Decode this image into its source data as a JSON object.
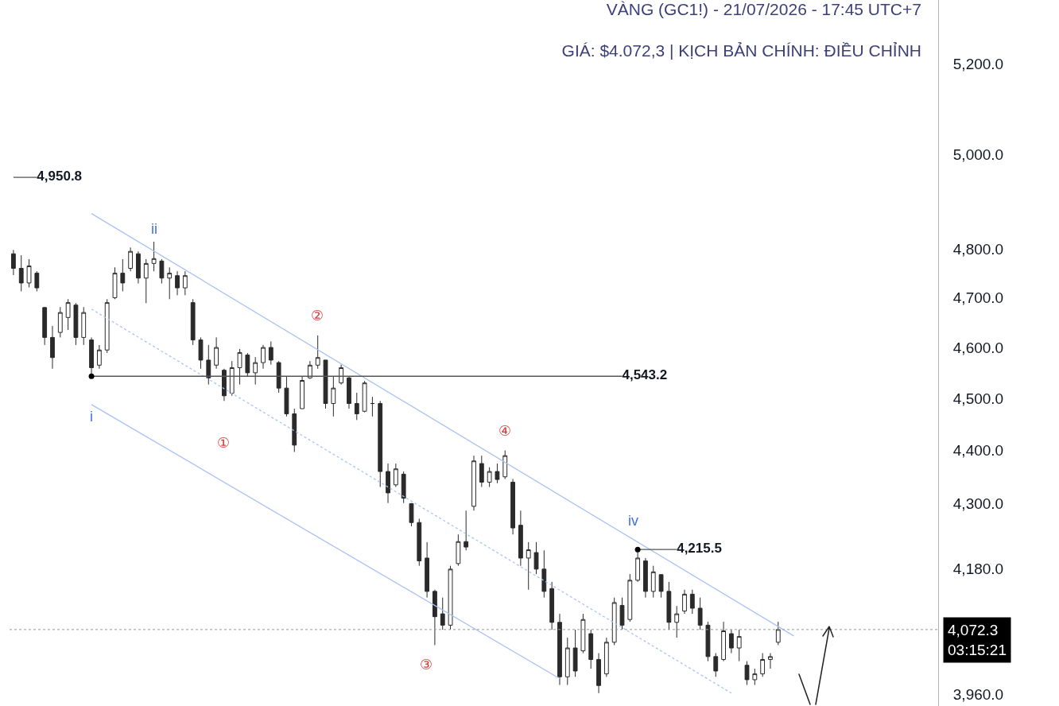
{
  "chart_data": {
    "type": "candlestick",
    "title": "VÀNG (GC1!) - 21/07/2026 - 17:45 UTC+7",
    "subtitle": "GIÁ: $4.072,3 | KỊCH BẢN CHÍNH: ĐIỀU CHỈNH",
    "color": "#2a2a2a",
    "categories": [
      null,
      null,
      null,
      null,
      null,
      null,
      null,
      null,
      null,
      null,
      null,
      null,
      null,
      null,
      null,
      null,
      null,
      null,
      null,
      null,
      null,
      null,
      null,
      null,
      null,
      null,
      null,
      null,
      null,
      null,
      null,
      null,
      null,
      null,
      null,
      null,
      null,
      null,
      null,
      null,
      null,
      null,
      null,
      null,
      null,
      null,
      null,
      null,
      null,
      null,
      null,
      null,
      null,
      null,
      null,
      null,
      null,
      null,
      null,
      null,
      null,
      null,
      null,
      null,
      null,
      null,
      null,
      null,
      null,
      null,
      null,
      null,
      null,
      null,
      null,
      null,
      null,
      null,
      null,
      null,
      null,
      null,
      null,
      null,
      null,
      null,
      null,
      null,
      null,
      null,
      null,
      null,
      null,
      null,
      null,
      null,
      null,
      null,
      null,
      null,
      null,
      null,
      null,
      null,
      null,
      null,
      null,
      null,
      null,
      null,
      null,
      null,
      null,
      null,
      null,
      null,
      null,
      null,
      null
    ],
    "ohlc": [
      [
        4790,
        4798,
        4746,
        4760
      ],
      [
        4760,
        4787,
        4713,
        4730
      ],
      [
        4730,
        4779,
        4721,
        4765
      ],
      [
        4750,
        4754,
        4713,
        4720
      ],
      [
        4680,
        4681,
        4605,
        4620
      ],
      [
        4620,
        4643,
        4558,
        4580
      ],
      [
        4630,
        4681,
        4620,
        4670
      ],
      [
        4660,
        4697,
        4635,
        4690
      ],
      [
        4685,
        4689,
        4605,
        4620
      ],
      [
        4620,
        4681,
        4605,
        4670
      ],
      [
        4615,
        4620,
        4545,
        4560
      ],
      [
        4565,
        4605,
        4558,
        4595
      ],
      [
        4595,
        4697,
        4589,
        4690
      ],
      [
        4700,
        4762,
        4697,
        4750
      ],
      [
        4750,
        4779,
        4713,
        4730
      ],
      [
        4760,
        4803,
        4754,
        4795
      ],
      [
        4790,
        4795,
        4729,
        4740
      ],
      [
        4740,
        4779,
        4689,
        4770
      ],
      [
        4770,
        4815,
        4754,
        4780
      ],
      [
        4775,
        4779,
        4729,
        4740
      ],
      [
        4740,
        4762,
        4697,
        4750
      ],
      [
        4745,
        4754,
        4705,
        4720
      ],
      [
        4720,
        4754,
        4705,
        4745
      ],
      [
        4690,
        4697,
        4605,
        4615
      ],
      [
        4615,
        4620,
        4558,
        4575
      ],
      [
        4575,
        4605,
        4527,
        4540
      ],
      [
        4565,
        4620,
        4558,
        4600
      ],
      [
        4555,
        4558,
        4495,
        4505
      ],
      [
        4510,
        4573,
        4505,
        4560
      ],
      [
        4560,
        4597,
        4527,
        4590
      ],
      [
        4585,
        4589,
        4542,
        4550
      ],
      [
        4550,
        4581,
        4527,
        4570
      ],
      [
        4570,
        4605,
        4558,
        4600
      ],
      [
        4600,
        4612,
        4566,
        4575
      ],
      [
        4570,
        4573,
        4511,
        4520
      ],
      [
        4520,
        4542,
        4465,
        4470
      ],
      [
        4470,
        4480,
        4397,
        4410
      ],
      [
        4480,
        4542,
        4480,
        4535
      ],
      [
        4540,
        4573,
        4538,
        4565
      ],
      [
        4565,
        4624,
        4558,
        4580
      ],
      [
        4575,
        4575,
        4480,
        4490
      ],
      [
        4490,
        4542,
        4465,
        4520
      ],
      [
        4530,
        4566,
        4527,
        4560
      ],
      [
        4540,
        4542,
        4480,
        4490
      ],
      [
        4490,
        4511,
        4458,
        4470
      ],
      [
        4475,
        4534,
        4473,
        4530
      ],
      [
        4490,
        4503,
        4465,
        4490
      ],
      [
        4490,
        4495,
        4331,
        4360
      ],
      [
        4360,
        4375,
        4301,
        4320
      ],
      [
        4335,
        4375,
        4331,
        4365
      ],
      [
        4355,
        4360,
        4301,
        4310
      ],
      [
        4300,
        4301,
        4258,
        4265
      ],
      [
        4265,
        4272,
        4186,
        4195
      ],
      [
        4200,
        4229,
        4129,
        4140
      ],
      [
        4140,
        4143,
        4045,
        4095
      ],
      [
        4100,
        4129,
        4072,
        4080
      ],
      [
        4080,
        4186,
        4072,
        4180
      ],
      [
        4190,
        4243,
        4186,
        4230
      ],
      [
        4230,
        4287,
        4214,
        4220
      ],
      [
        4295,
        4390,
        4287,
        4380
      ],
      [
        4375,
        4390,
        4331,
        4340
      ],
      [
        4340,
        4368,
        4331,
        4360
      ],
      [
        4360,
        4375,
        4338,
        4345
      ],
      [
        4350,
        4400,
        4346,
        4390
      ],
      [
        4340,
        4346,
        4243,
        4255
      ],
      [
        4260,
        4287,
        4186,
        4200
      ],
      [
        4200,
        4229,
        4143,
        4215
      ],
      [
        4210,
        4229,
        4171,
        4180
      ],
      [
        4180,
        4214,
        4129,
        4140
      ],
      [
        4145,
        4157,
        4072,
        4085
      ],
      [
        4085,
        4100,
        3976,
        3990
      ],
      [
        3990,
        4058,
        3976,
        4040
      ],
      [
        4040,
        4072,
        3990,
        4000
      ],
      [
        4035,
        4100,
        4031,
        4090
      ],
      [
        4065,
        4072,
        4004,
        4020
      ],
      [
        4020,
        4031,
        3962,
        3975
      ],
      [
        3995,
        4058,
        3990,
        4050
      ],
      [
        4050,
        4129,
        4045,
        4120
      ],
      [
        4115,
        4129,
        4072,
        4080
      ],
      [
        4090,
        4171,
        4086,
        4160
      ],
      [
        4160,
        4215.5,
        4157,
        4200
      ],
      [
        4195,
        4200,
        4129,
        4140
      ],
      [
        4140,
        4186,
        4129,
        4175
      ],
      [
        4170,
        4171,
        4129,
        4140
      ],
      [
        4140,
        4157,
        4072,
        4085
      ],
      [
        4085,
        4114,
        4058,
        4100
      ],
      [
        4105,
        4143,
        4100,
        4135
      ],
      [
        4135,
        4143,
        4100,
        4110
      ],
      [
        4110,
        4129,
        4072,
        4080
      ],
      [
        4080,
        4086,
        4017,
        4025
      ],
      [
        4025,
        4031,
        3990,
        4000
      ],
      [
        4020,
        4086,
        4017,
        4070
      ],
      [
        4065,
        4072,
        4031,
        4040
      ],
      [
        4040,
        4072,
        4017,
        4060
      ],
      [
        4010,
        4017,
        3976,
        3985
      ],
      [
        3985,
        4004,
        3976,
        3995
      ],
      [
        3995,
        4031,
        3990,
        4020
      ],
      [
        4020,
        4031,
        4004,
        4025
      ],
      [
        4050,
        4086,
        4045,
        4072.3
      ],
      null,
      null,
      null,
      null,
      null,
      null,
      null,
      null,
      null,
      null,
      null,
      null,
      null,
      null,
      null,
      null,
      null,
      null,
      null,
      null
    ],
    "series": [
      {
        "type": "line",
        "color": "#a9c1f5",
        "values": [
          null,
          null,
          null,
          null,
          null,
          null,
          null,
          null,
          null,
          null,
          4874,
          null,
          null,
          null,
          null,
          null,
          null,
          null,
          null,
          null,
          null,
          null,
          null,
          null,
          null,
          null,
          null,
          null,
          null,
          null,
          null,
          null,
          null,
          null,
          null,
          null,
          null,
          null,
          null,
          null,
          null,
          null,
          null,
          null,
          null,
          null,
          null,
          null,
          null,
          null,
          null,
          null,
          null,
          null,
          null,
          null,
          null,
          null,
          null,
          null,
          null,
          null,
          null,
          null,
          null,
          null,
          null,
          null,
          null,
          null,
          null,
          null,
          null,
          null,
          null,
          null,
          null,
          null,
          null,
          null,
          null,
          null,
          null,
          null,
          null,
          null,
          null,
          null,
          null,
          null,
          null,
          null,
          null,
          null,
          null,
          null,
          null,
          null,
          null,
          null,
          4061,
          null,
          null,
          null,
          null,
          null,
          null,
          null,
          null,
          null,
          null,
          null,
          null,
          null,
          null,
          null,
          null,
          null,
          null
        ]
      },
      {
        "type": "line",
        "color": "#a9c1f5",
        "line_style": "dotted",
        "values": [
          null,
          null,
          null,
          null,
          null,
          null,
          null,
          null,
          null,
          null,
          4677,
          null,
          null,
          null,
          null,
          null,
          null,
          null,
          null,
          null,
          null,
          null,
          null,
          null,
          null,
          null,
          null,
          null,
          null,
          null,
          null,
          null,
          null,
          null,
          null,
          null,
          null,
          null,
          null,
          null,
          null,
          null,
          null,
          null,
          null,
          null,
          null,
          null,
          null,
          null,
          null,
          null,
          null,
          null,
          null,
          null,
          null,
          null,
          null,
          null,
          null,
          null,
          null,
          null,
          null,
          null,
          null,
          null,
          null,
          null,
          null,
          null,
          null,
          null,
          null,
          null,
          null,
          null,
          null,
          null,
          null,
          null,
          null,
          null,
          null,
          null,
          null,
          null,
          null,
          null,
          null,
          null,
          3962,
          null,
          null,
          null,
          null,
          null,
          null,
          null,
          null,
          null,
          null,
          null,
          null,
          null,
          null,
          null,
          null,
          null,
          null,
          null,
          null,
          null,
          null,
          null,
          null,
          null,
          null
        ]
      },
      {
        "type": "line",
        "color": "#a9c1f5",
        "values": [
          null,
          null,
          null,
          null,
          null,
          null,
          null,
          null,
          null,
          null,
          4488,
          null,
          null,
          null,
          null,
          null,
          null,
          null,
          null,
          null,
          null,
          null,
          null,
          null,
          null,
          null,
          null,
          null,
          null,
          null,
          null,
          null,
          null,
          null,
          null,
          null,
          null,
          null,
          null,
          null,
          null,
          null,
          null,
          null,
          null,
          null,
          null,
          null,
          null,
          null,
          null,
          null,
          null,
          null,
          null,
          null,
          null,
          null,
          null,
          null,
          null,
          null,
          null,
          null,
          null,
          null,
          null,
          null,
          null,
          null,
          3987,
          null,
          null,
          null,
          null,
          null,
          null,
          null,
          null,
          null,
          null,
          null,
          null,
          null,
          null,
          null,
          null,
          null,
          null,
          null,
          null,
          null,
          null,
          null,
          null,
          null,
          null,
          null,
          null,
          null,
          null,
          null,
          null,
          null,
          null,
          null,
          null,
          null,
          null,
          null,
          null,
          null,
          null,
          null,
          null,
          null,
          null,
          null,
          null
        ]
      },
      {
        "type": "line",
        "color": "#555555",
        "values": [
          4950.8,
          null,
          null,
          4950.8,
          null,
          null,
          null,
          null,
          null,
          null,
          null,
          null,
          null,
          null,
          null,
          null,
          null,
          null,
          null,
          null,
          null,
          null,
          null,
          null,
          null,
          null,
          null,
          null,
          null,
          null,
          null,
          null,
          null,
          null,
          null,
          null,
          null,
          null,
          null,
          null,
          null,
          null,
          null,
          null,
          null,
          null,
          null,
          null,
          null,
          null,
          null,
          null,
          null,
          null,
          null,
          null,
          null,
          null,
          null,
          null,
          null,
          null,
          null,
          null,
          null,
          null,
          null,
          null,
          null,
          null,
          null,
          null,
          null,
          null,
          null,
          null,
          null,
          null,
          null,
          null,
          null,
          null,
          null,
          null,
          null,
          null,
          null,
          null,
          null,
          null,
          null,
          null,
          null,
          null,
          null,
          null,
          null,
          null,
          null,
          null,
          null,
          null,
          null,
          null,
          null,
          null,
          null,
          null,
          null,
          null,
          null,
          null,
          null,
          null,
          null,
          null,
          null,
          null,
          null
        ],
        "value_labels": [
          null,
          null,
          null,
          "4,950.8",
          null,
          null,
          null,
          null,
          null,
          null,
          null,
          null,
          null,
          null,
          null,
          null,
          null,
          null,
          null,
          null,
          null,
          null,
          null,
          null,
          null,
          null,
          null,
          null,
          null,
          null,
          null,
          null,
          null,
          null,
          null,
          null,
          null,
          null,
          null,
          null,
          null,
          null,
          null,
          null,
          null,
          null,
          null,
          null,
          null,
          null,
          null,
          null,
          null,
          null,
          null,
          null,
          null,
          null,
          null,
          null,
          null,
          null,
          null,
          null,
          null,
          null,
          null,
          null,
          null,
          null,
          null,
          null,
          null,
          null,
          null,
          null,
          null,
          null,
          null,
          null,
          null,
          null,
          null,
          null,
          null,
          null,
          null,
          null,
          null,
          null,
          null,
          null,
          null,
          null,
          null,
          null,
          null,
          null,
          null,
          null,
          null,
          null,
          null,
          null,
          null,
          null,
          null,
          null,
          null,
          null,
          null,
          null,
          null,
          null,
          null,
          null,
          null,
          null,
          null
        ]
      },
      {
        "type": "line",
        "color": "#555555",
        "values": [
          null,
          null,
          null,
          null,
          null,
          null,
          null,
          null,
          null,
          null,
          4543.2,
          null,
          null,
          null,
          null,
          null,
          null,
          null,
          null,
          null,
          null,
          null,
          null,
          null,
          null,
          null,
          null,
          null,
          null,
          null,
          null,
          null,
          null,
          null,
          null,
          null,
          null,
          null,
          null,
          null,
          null,
          null,
          null,
          null,
          null,
          null,
          null,
          null,
          null,
          null,
          null,
          null,
          null,
          null,
          null,
          null,
          null,
          null,
          null,
          null,
          null,
          null,
          null,
          null,
          null,
          null,
          null,
          null,
          null,
          null,
          null,
          null,
          null,
          null,
          null,
          null,
          null,
          null,
          4543.2,
          null,
          null,
          null,
          null,
          null,
          null,
          null,
          null,
          null,
          null,
          null,
          null,
          null,
          null,
          null,
          null,
          null,
          null,
          null,
          null,
          null,
          null,
          null,
          null,
          null,
          null,
          null,
          null,
          null,
          null,
          null,
          null,
          null,
          null,
          null,
          null,
          null,
          null,
          null,
          null
        ],
        "value_labels": [
          null,
          null,
          null,
          null,
          null,
          null,
          null,
          null,
          null,
          null,
          null,
          null,
          null,
          null,
          null,
          null,
          null,
          null,
          null,
          null,
          null,
          null,
          null,
          null,
          null,
          null,
          null,
          null,
          null,
          null,
          null,
          null,
          null,
          null,
          null,
          null,
          null,
          null,
          null,
          null,
          null,
          null,
          null,
          null,
          null,
          null,
          null,
          null,
          null,
          null,
          null,
          null,
          null,
          null,
          null,
          null,
          null,
          null,
          null,
          null,
          null,
          null,
          null,
          null,
          null,
          null,
          null,
          null,
          null,
          null,
          null,
          null,
          null,
          null,
          null,
          null,
          null,
          null,
          "4,543.2",
          null,
          null,
          null,
          null,
          null,
          null,
          null,
          null,
          null,
          null,
          null,
          null,
          null,
          null,
          null,
          null,
          null,
          null,
          null,
          null,
          null,
          null,
          null,
          null,
          null,
          null,
          null,
          null,
          null,
          null,
          null,
          null,
          null,
          null,
          null,
          null,
          null,
          null,
          null,
          null
        ]
      },
      {
        "type": "line",
        "color": "#555555",
        "values": [
          null,
          null,
          null,
          null,
          null,
          null,
          null,
          null,
          null,
          null,
          null,
          null,
          null,
          null,
          null,
          null,
          null,
          null,
          null,
          null,
          null,
          null,
          null,
          null,
          null,
          null,
          null,
          null,
          null,
          null,
          null,
          null,
          null,
          null,
          null,
          null,
          null,
          null,
          null,
          null,
          null,
          null,
          null,
          null,
          null,
          null,
          null,
          null,
          null,
          null,
          null,
          null,
          null,
          null,
          null,
          null,
          null,
          null,
          null,
          null,
          null,
          null,
          null,
          null,
          null,
          null,
          null,
          null,
          null,
          null,
          null,
          null,
          null,
          null,
          null,
          null,
          null,
          null,
          null,
          null,
          4215.5,
          null,
          null,
          null,
          null,
          4215.5,
          null,
          null,
          null,
          null,
          null,
          null,
          null,
          null,
          null,
          null,
          null,
          null,
          null,
          null,
          null,
          null,
          null,
          null,
          null,
          null,
          null,
          null,
          null,
          null,
          null,
          null,
          null,
          null,
          null,
          null,
          null,
          null,
          null
        ],
        "value_labels": [
          null,
          null,
          null,
          null,
          null,
          null,
          null,
          null,
          null,
          null,
          null,
          null,
          null,
          null,
          null,
          null,
          null,
          null,
          null,
          null,
          null,
          null,
          null,
          null,
          null,
          null,
          null,
          null,
          null,
          null,
          null,
          null,
          null,
          null,
          null,
          null,
          null,
          null,
          null,
          null,
          null,
          null,
          null,
          null,
          null,
          null,
          null,
          null,
          null,
          null,
          null,
          null,
          null,
          null,
          null,
          null,
          null,
          null,
          null,
          null,
          null,
          null,
          null,
          null,
          null,
          null,
          null,
          null,
          null,
          null,
          null,
          null,
          null,
          null,
          null,
          null,
          null,
          null,
          null,
          null,
          null,
          null,
          null,
          null,
          null,
          "4,215.5",
          null,
          null,
          null,
          null,
          null,
          null,
          null,
          null,
          null,
          null,
          null,
          null,
          null,
          null,
          null,
          null,
          null,
          null,
          null,
          null,
          null,
          null,
          null,
          null,
          null,
          null,
          null,
          null,
          null,
          null,
          null,
          null,
          null
        ]
      },
      {
        "type": "scatter",
        "color": "#000000",
        "marker": "circle",
        "values": [
          null,
          null,
          null,
          null,
          null,
          null,
          null,
          null,
          null,
          null,
          4543.2,
          null,
          null,
          null,
          null,
          null,
          null,
          null,
          null,
          null,
          null,
          null,
          null,
          null,
          null,
          null,
          null,
          null,
          null,
          null,
          null,
          null,
          null,
          null,
          null,
          null,
          null,
          null,
          null,
          null,
          null,
          null,
          null,
          null,
          null,
          null,
          null,
          null,
          null,
          null,
          null,
          null,
          null,
          null,
          null,
          null,
          null,
          null,
          null,
          null,
          null,
          null,
          null,
          null,
          null,
          null,
          null,
          null,
          null,
          null,
          null,
          null,
          null,
          null,
          null,
          null,
          null,
          null,
          null,
          null,
          4215.5,
          null,
          null,
          null,
          null,
          null,
          null,
          null,
          null,
          null,
          null,
          null,
          null,
          null,
          null,
          null,
          null,
          null,
          null,
          null,
          null,
          null,
          null,
          null,
          null,
          null,
          null,
          null,
          null,
          null,
          null,
          null,
          null,
          null,
          null,
          null,
          null,
          null,
          null
        ]
      }
    ],
    "annotations": [
      "i",
      "ii",
      "iv",
      "①",
      "②",
      "③",
      "④"
    ],
    "ref_lines": [
      {
        "axis": "y",
        "value": 4072.3,
        "label": "4,072.3\n03:15:21",
        "color": "#999999",
        "line_style": "dotted"
      }
    ],
    "log": "y",
    "ylim": [
      3940,
      5345
    ],
    "yticks": [
      {
        "value": 3960,
        "label": "3,960.0"
      },
      {
        "value": 4180,
        "label": "4,180.0"
      },
      {
        "value": 4300,
        "label": "4,300.0"
      },
      {
        "value": 4400,
        "label": "4,400.0"
      },
      {
        "value": 4500,
        "label": "4,500.0"
      },
      {
        "value": 4600,
        "label": "4,600.0"
      },
      {
        "value": 4700,
        "label": "4,700.0"
      },
      {
        "value": 4800,
        "label": "4,800.0"
      },
      {
        "value": 5000,
        "label": "5,000.0"
      },
      {
        "value": 5200,
        "label": "5,200.0"
      }
    ],
    "tick_labels": "y",
    "grid": false
  }
}
